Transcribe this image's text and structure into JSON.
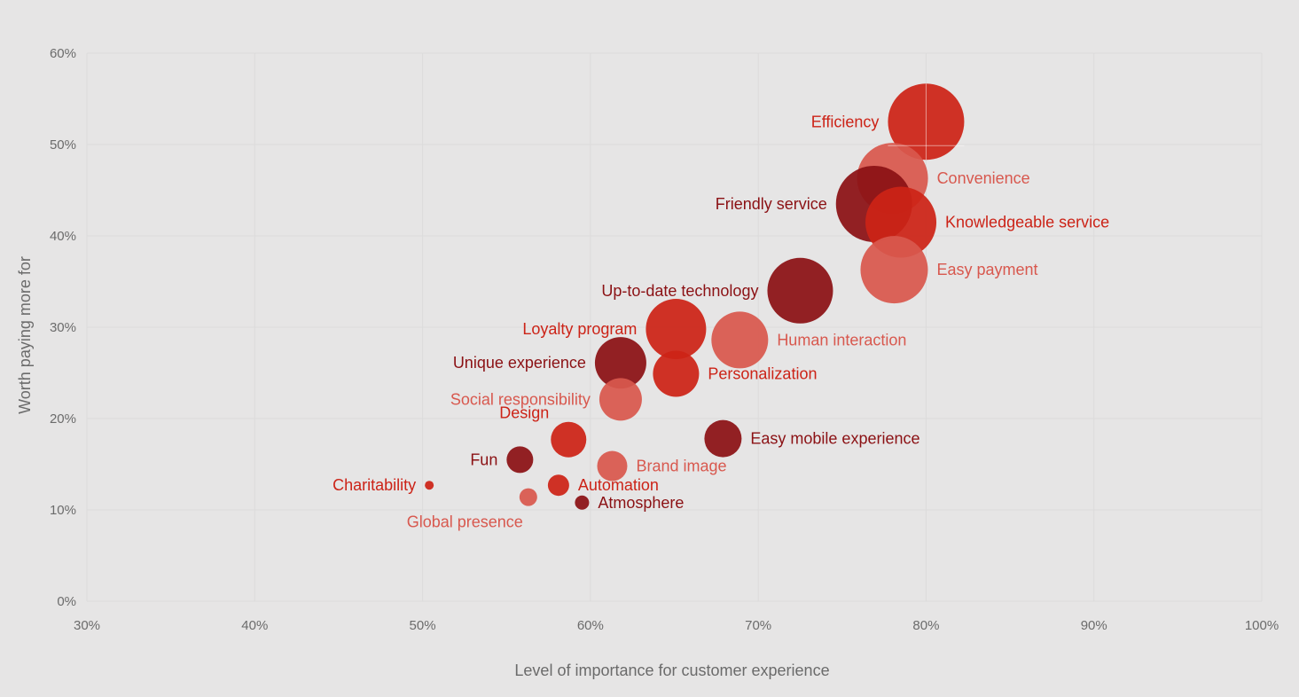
{
  "chart_data": {
    "type": "scatter",
    "title": "",
    "xlabel": "Level of importance for customer experience",
    "ylabel": "Worth paying more for",
    "xlim": [
      30,
      100
    ],
    "ylim": [
      0,
      60
    ],
    "x_ticks": [
      "30%",
      "40%",
      "50%",
      "60%",
      "70%",
      "80%",
      "90%",
      "100%"
    ],
    "y_ticks": [
      "0%",
      "10%",
      "20%",
      "30%",
      "40%",
      "50%",
      "60%"
    ],
    "x_tick_values": [
      30,
      40,
      50,
      60,
      70,
      80,
      90,
      100
    ],
    "y_tick_values": [
      0,
      10,
      20,
      30,
      40,
      50,
      60
    ],
    "grid": true,
    "legend": "none",
    "colors": {
      "dark": "#8b1114",
      "red": "#cc2317",
      "light": "#d8584e"
    },
    "points": [
      {
        "label": "Efficiency",
        "x": 80.0,
        "y": 52.5,
        "size": 43,
        "color": "red",
        "label_side": "left"
      },
      {
        "label": "Convenience",
        "x": 78.0,
        "y": 46.3,
        "size": 40,
        "color": "light",
        "label_side": "right"
      },
      {
        "label": "Friendly service",
        "x": 76.9,
        "y": 43.5,
        "size": 43,
        "color": "dark",
        "label_side": "left"
      },
      {
        "label": "Knowledgeable service",
        "x": 78.5,
        "y": 41.5,
        "size": 40,
        "color": "red",
        "label_side": "right"
      },
      {
        "label": "Easy payment",
        "x": 78.1,
        "y": 36.3,
        "size": 38,
        "color": "light",
        "label_side": "right"
      },
      {
        "label": "Up-to-date technology",
        "x": 72.5,
        "y": 34.0,
        "size": 37,
        "color": "dark",
        "label_side": "left"
      },
      {
        "label": "Loyalty program",
        "x": 65.1,
        "y": 29.8,
        "size": 34,
        "color": "red",
        "label_side": "left"
      },
      {
        "label": "Human interaction",
        "x": 68.9,
        "y": 28.6,
        "size": 32,
        "color": "light",
        "label_side": "right"
      },
      {
        "label": "Unique experience",
        "x": 61.8,
        "y": 26.1,
        "size": 29,
        "color": "dark",
        "label_side": "left"
      },
      {
        "label": "Personalization",
        "x": 65.1,
        "y": 24.9,
        "size": 26,
        "color": "red",
        "label_side": "right"
      },
      {
        "label": "Social responsibility",
        "x": 61.8,
        "y": 22.1,
        "size": 24,
        "color": "light",
        "label_side": "left"
      },
      {
        "label": "Design",
        "x": 58.7,
        "y": 17.7,
        "size": 20,
        "color": "red",
        "label_side": "upleft"
      },
      {
        "label": "Easy mobile experience",
        "x": 67.9,
        "y": 17.8,
        "size": 21,
        "color": "dark",
        "label_side": "right"
      },
      {
        "label": "Brand image",
        "x": 61.3,
        "y": 14.8,
        "size": 17,
        "color": "light",
        "label_side": "right"
      },
      {
        "label": "Fun",
        "x": 55.8,
        "y": 15.5,
        "size": 15,
        "color": "dark",
        "label_side": "left"
      },
      {
        "label": "Charitability",
        "x": 50.4,
        "y": 12.7,
        "size": 5,
        "color": "red",
        "label_side": "left"
      },
      {
        "label": "Automation",
        "x": 58.1,
        "y": 12.7,
        "size": 12,
        "color": "red",
        "label_side": "right"
      },
      {
        "label": "Global presence",
        "x": 56.3,
        "y": 11.4,
        "size": 10,
        "color": "light",
        "label_side": "downleft"
      },
      {
        "label": "Atmosphere",
        "x": 59.5,
        "y": 10.8,
        "size": 8,
        "color": "dark",
        "label_side": "right"
      }
    ]
  }
}
